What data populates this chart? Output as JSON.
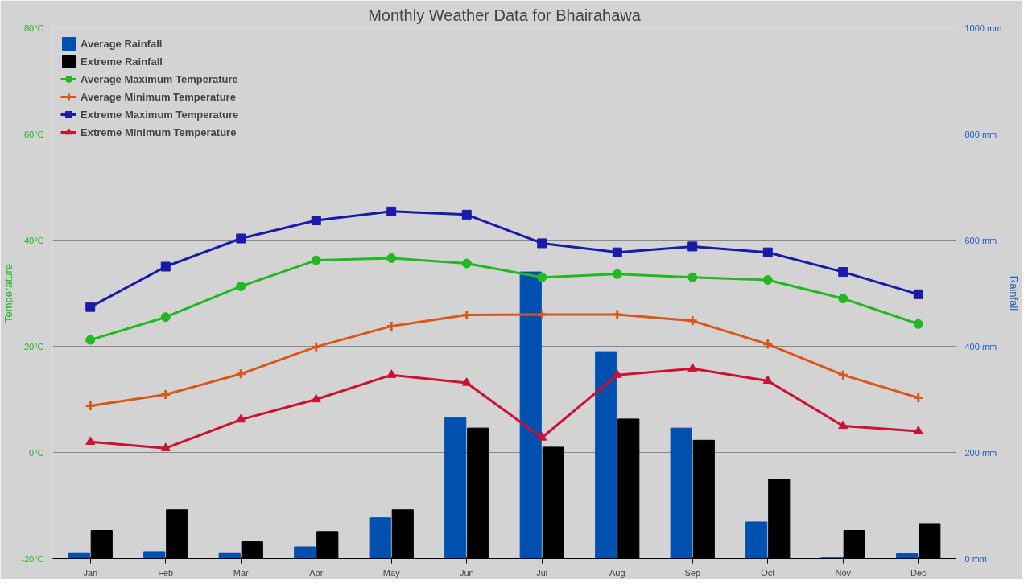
{
  "chart_data": {
    "type": "line",
    "title": "Monthly Weather Data for Bhairahawa",
    "ylabel": "Temperature",
    "y2label": "Rainfall",
    "categories": [
      "Jan",
      "Feb",
      "Mar",
      "Apr",
      "May",
      "Jun",
      "Jul",
      "Aug",
      "Sep",
      "Oct",
      "Nov",
      "Dec"
    ],
    "ylim": [
      -20,
      80
    ],
    "yticks": [
      {
        "value": -20,
        "label": "-20°C"
      },
      {
        "value": 0,
        "label": "0°C"
      },
      {
        "value": 20,
        "label": "20°C"
      },
      {
        "value": 40,
        "label": "40°C"
      },
      {
        "value": 60,
        "label": "60°C"
      },
      {
        "value": 80,
        "label": "80°C"
      }
    ],
    "y2lim": [
      0,
      1000
    ],
    "y2ticks": [
      {
        "value": 0,
        "label": "0 mm"
      },
      {
        "value": 200,
        "label": "200 mm"
      },
      {
        "value": 400,
        "label": "400 mm"
      },
      {
        "value": 600,
        "label": "600 mm"
      },
      {
        "value": 800,
        "label": "800 mm"
      },
      {
        "value": 1000,
        "label": "1000 mm"
      }
    ],
    "grid": "y",
    "legend": "top left",
    "series": [
      {
        "name": "Average Rainfall",
        "type": "bar",
        "axis": "y2",
        "color": "#0050b0",
        "values": [
          11,
          13,
          11,
          22,
          77,
          265,
          540,
          390,
          246,
          69,
          2,
          9
        ]
      },
      {
        "name": "Extreme Rainfall",
        "type": "bar",
        "axis": "y2",
        "color": "#000000",
        "values": [
          53,
          92,
          32,
          51,
          92,
          246,
          210,
          263,
          223,
          150,
          53,
          66
        ]
      },
      {
        "name": "Average Maximum Temperature",
        "marker": "circle",
        "color": "#22b822",
        "values": [
          21.2,
          25.5,
          31.3,
          36.2,
          36.6,
          35.6,
          33,
          33.6,
          33,
          32.5,
          29,
          24.2
        ]
      },
      {
        "name": "Average Minimum Temperature",
        "marker": "cross",
        "color": "#d9571a",
        "values": [
          8.8,
          10.9,
          14.8,
          19.9,
          23.8,
          25.9,
          26,
          26,
          24.8,
          20.4,
          14.6,
          10.3
        ]
      },
      {
        "name": "Extreme Maximum Temperature",
        "marker": "square",
        "color": "#1a1aaa",
        "values": [
          27.4,
          35,
          40.3,
          43.7,
          45.4,
          44.8,
          39.4,
          37.7,
          38.8,
          37.7,
          34,
          29.8
        ]
      },
      {
        "name": "Extreme Minimum Temperature",
        "marker": "triangle",
        "color": "#cc1133",
        "values": [
          2,
          0.8,
          6.2,
          10,
          14.6,
          13.1,
          2.8,
          14.6,
          15.8,
          13.5,
          5,
          4
        ]
      }
    ]
  }
}
